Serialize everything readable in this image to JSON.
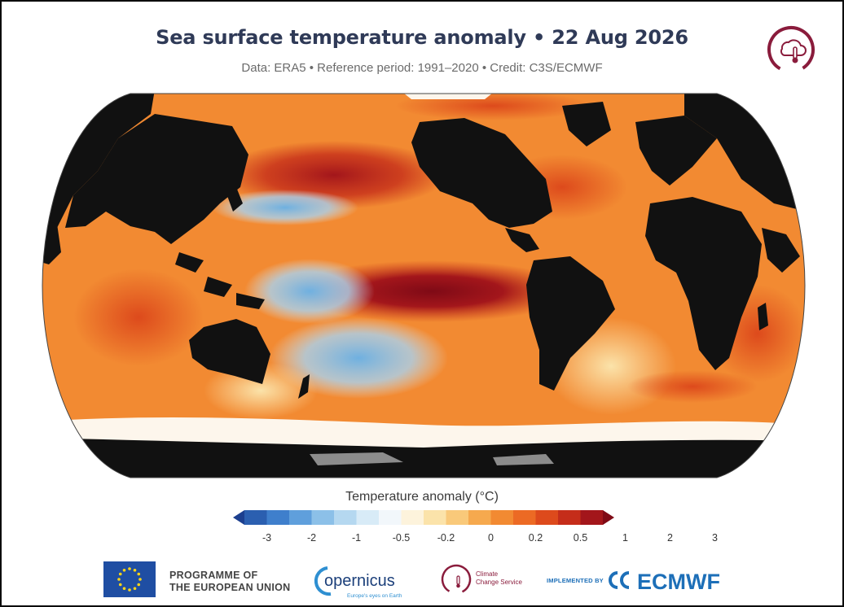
{
  "header": {
    "title": "Sea surface temperature anomaly • 22 Aug 2026",
    "subtitle": "Data: ERA5 • Reference period: 1991–2020 • Credit: C3S/ECMWF"
  },
  "map": {
    "projection": "robinson",
    "land_color": "#111111",
    "sea_ice_color": "#fdf6ec",
    "ice_shelf_color": "#8c8c8c"
  },
  "legend": {
    "title": "Temperature anomaly (°C)",
    "ticks": [
      "-3",
      "-2",
      "-1",
      "-0.5",
      "-0.2",
      "0",
      "0.2",
      "0.5",
      "1",
      "2",
      "3"
    ],
    "colors": [
      "#1c3f8f",
      "#2b5fb0",
      "#3f7fcc",
      "#5f9fdc",
      "#8cc0e8",
      "#b5d8f0",
      "#d8ebf7",
      "#f2f7fb",
      "#fdf3dc",
      "#fbe3aa",
      "#f9c97a",
      "#f6a94e",
      "#f28a32",
      "#ec6a24",
      "#dd4a1c",
      "#c52d1a",
      "#a3161b",
      "#7f0a16"
    ]
  },
  "footer": {
    "eu_line1": "PROGRAMME OF",
    "eu_line2": "THE EUROPEAN UNION",
    "copernicus_name": "opernicus",
    "copernicus_tagline": "Europe's eyes on Earth",
    "ccs_line1": "Climate",
    "ccs_line2": "Change Service",
    "implemented_by": "IMPLEMENTED BY",
    "ecmwf": "ECMWF"
  }
}
